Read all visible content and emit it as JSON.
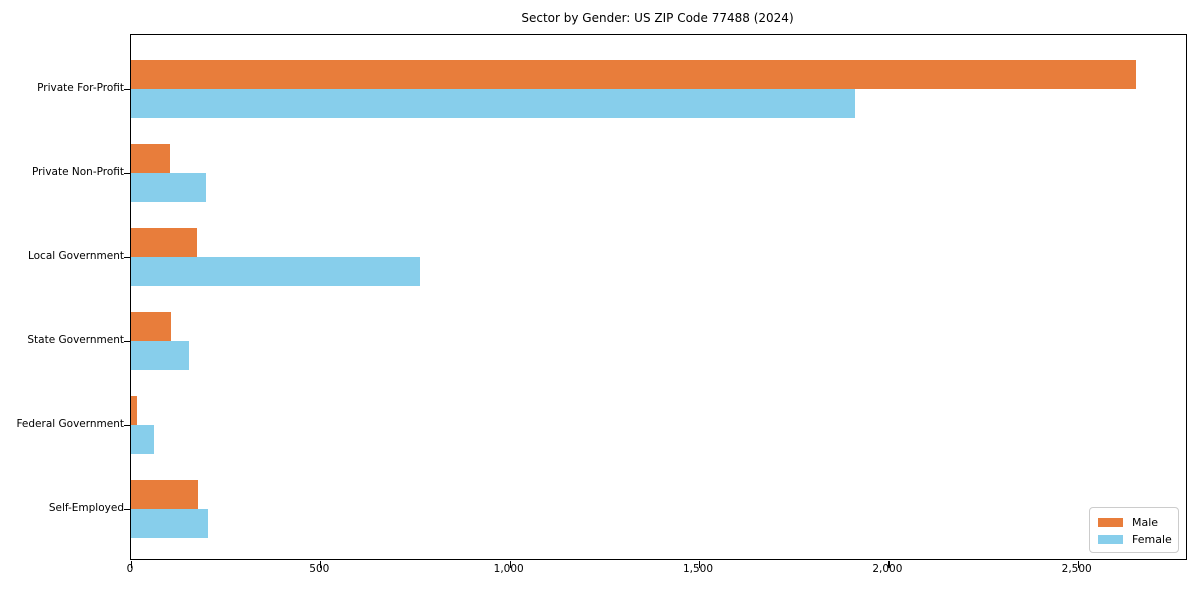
{
  "chart_data": {
    "type": "bar",
    "orientation": "horizontal",
    "title": "Sector by Gender: US ZIP Code 77488 (2024)",
    "categories": [
      "Private For-Profit",
      "Private Non-Profit",
      "Local Government",
      "State Government",
      "Federal Government",
      "Self-Employed"
    ],
    "series": [
      {
        "name": "Male",
        "color": "#e87d3b",
        "values": [
          2655,
          102,
          174,
          106,
          16,
          176
        ]
      },
      {
        "name": "Female",
        "color": "#87ceeb",
        "values": [
          1913,
          197,
          762,
          152,
          60,
          204
        ]
      }
    ],
    "xlabel": "",
    "ylabel": "",
    "xlim": [
      0,
      2786
    ],
    "x_ticks": [
      0,
      500,
      1000,
      1500,
      2000,
      2500
    ],
    "x_tick_labels": [
      "0",
      "500",
      "1,000",
      "1,500",
      "2,000",
      "2,500"
    ],
    "grid": false,
    "legend_position": "lower right",
    "colors": {
      "axis": "#000000",
      "legend_border": "#cccccc",
      "background": "#ffffff"
    }
  }
}
